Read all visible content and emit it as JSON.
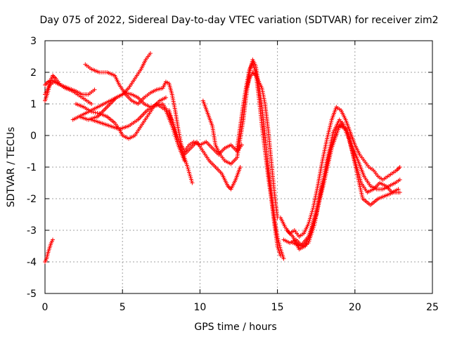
{
  "chart_data": {
    "type": "scatter",
    "title": "Day 075 of 2022, Sidereal Day-to-day VTEC variation (SDTVAR) for receiver zim2",
    "xlabel": "GPS time / hours",
    "ylabel": "SDTVAR / TECUs",
    "xlim": [
      0,
      25
    ],
    "ylim": [
      -5,
      3
    ],
    "xticks": [
      0,
      5,
      10,
      15,
      20,
      25
    ],
    "yticks": [
      -5,
      -4,
      -3,
      -2,
      -1,
      0,
      1,
      2,
      3
    ],
    "grid": true,
    "marker": "plus",
    "color": "#ff0000",
    "series": [
      {
        "x": [
          0.0,
          0.1,
          0.2,
          0.3,
          0.4,
          0.5
        ],
        "y": [
          -4.0,
          -3.9,
          -3.7,
          -3.55,
          -3.4,
          -3.3
        ]
      },
      {
        "x": [
          0.0,
          0.2,
          0.4,
          0.5,
          0.7,
          1.0,
          1.3,
          1.6,
          2.0,
          2.4,
          2.8,
          3.2
        ],
        "y": [
          1.1,
          1.4,
          1.8,
          1.9,
          1.8,
          1.6,
          1.5,
          1.45,
          1.4,
          1.3,
          1.3,
          1.45
        ]
      },
      {
        "x": [
          0.0,
          0.2,
          0.5,
          0.8,
          1.2,
          1.8,
          2.4,
          3.0
        ],
        "y": [
          1.6,
          1.7,
          1.75,
          1.65,
          1.55,
          1.4,
          1.2,
          1.0
        ]
      },
      {
        "x": [
          0.0,
          0.3,
          0.6,
          1.0,
          1.5,
          2.0
        ],
        "y": [
          1.3,
          1.6,
          1.7,
          1.6,
          1.5,
          1.4
        ]
      },
      {
        "x": [
          1.8,
          2.2,
          2.6,
          3.0,
          3.4,
          3.8,
          4.2,
          4.6,
          5.0,
          5.4,
          5.8,
          6.2,
          6.5,
          6.8
        ],
        "y": [
          0.5,
          0.6,
          0.7,
          0.8,
          0.9,
          1.0,
          1.1,
          1.2,
          1.3,
          1.5,
          1.8,
          2.1,
          2.4,
          2.6
        ]
      },
      {
        "x": [
          2.6,
          3.0,
          3.5,
          4.0,
          4.5,
          4.8,
          5.2,
          5.6,
          6.0,
          6.4,
          6.8,
          7.2,
          7.6
        ],
        "y": [
          2.25,
          2.1,
          2.0,
          2.0,
          1.9,
          1.6,
          1.3,
          1.1,
          1.0,
          1.2,
          1.35,
          1.45,
          1.5
        ]
      },
      {
        "x": [
          2.0,
          2.5,
          3.0,
          3.5,
          4.0,
          4.5,
          4.8,
          5.0,
          5.4,
          5.8,
          6.2,
          6.6,
          7.0,
          7.4,
          7.8
        ],
        "y": [
          1.0,
          0.9,
          0.75,
          0.7,
          0.6,
          0.4,
          0.2,
          0.0,
          -0.1,
          0.0,
          0.3,
          0.6,
          0.9,
          1.1,
          1.2
        ]
      },
      {
        "x": [
          2.2,
          2.8,
          3.4,
          4.0,
          4.6,
          5.2,
          5.6,
          6.0,
          6.4,
          6.8,
          7.2,
          7.6,
          8.0,
          8.4,
          8.8,
          9.2,
          9.5
        ],
        "y": [
          0.6,
          0.5,
          0.6,
          0.9,
          1.2,
          1.35,
          1.3,
          1.2,
          1.0,
          0.9,
          0.95,
          1.0,
          0.7,
          0.2,
          -0.4,
          -1.0,
          -1.5
        ]
      },
      {
        "x": [
          3.0,
          3.6,
          4.2,
          4.8,
          5.4,
          6.0,
          6.6,
          7.2,
          7.8,
          8.2,
          8.6,
          9.0
        ],
        "y": [
          0.5,
          0.4,
          0.3,
          0.2,
          0.3,
          0.5,
          0.8,
          1.0,
          0.8,
          0.3,
          -0.3,
          -0.8
        ]
      },
      {
        "x": [
          7.6,
          7.8,
          8.0,
          8.2,
          8.4,
          8.6,
          8.8,
          9.0,
          9.3,
          9.6,
          10.0,
          10.4,
          10.8,
          11.2,
          11.6,
          12.0,
          12.4,
          12.7
        ],
        "y": [
          1.5,
          1.7,
          1.65,
          1.3,
          0.8,
          0.2,
          -0.3,
          -0.5,
          -0.3,
          -0.2,
          -0.3,
          -0.2,
          -0.4,
          -0.6,
          -0.4,
          -0.3,
          -0.5,
          -0.3
        ]
      },
      {
        "x": [
          8.0,
          8.3,
          8.6,
          9.0,
          9.4,
          9.8,
          10.2,
          10.6,
          11.0,
          11.4,
          11.8,
          12.0,
          12.3,
          12.6
        ],
        "y": [
          0.8,
          0.3,
          -0.3,
          -0.6,
          -0.4,
          -0.2,
          -0.5,
          -0.8,
          -1.0,
          -1.2,
          -1.6,
          -1.7,
          -1.4,
          -1.0
        ]
      },
      {
        "x": [
          10.2,
          10.5,
          10.8,
          11.0,
          11.3,
          11.6,
          12.0,
          12.4,
          12.8,
          13.0,
          13.2,
          13.4,
          13.6,
          13.8,
          14.0,
          14.2,
          14.4,
          14.6,
          14.8,
          15.0,
          15.2,
          15.4
        ],
        "y": [
          1.1,
          0.7,
          0.3,
          -0.3,
          -0.6,
          -0.8,
          -0.9,
          -0.7,
          0.5,
          1.3,
          2.0,
          2.4,
          2.2,
          1.6,
          0.9,
          0.0,
          -1.0,
          -1.8,
          -2.6,
          -3.2,
          -3.6,
          -3.9
        ]
      },
      {
        "x": [
          12.4,
          12.6,
          12.8,
          13.0,
          13.2,
          13.4,
          13.6,
          13.8,
          14.0,
          14.2,
          14.4,
          14.6,
          14.8,
          15.0,
          15.2
        ],
        "y": [
          -0.4,
          0.3,
          1.0,
          1.6,
          2.1,
          2.3,
          2.0,
          1.2,
          0.3,
          -0.5,
          -1.3,
          -2.0,
          -2.8,
          -3.5,
          -3.8
        ]
      },
      {
        "x": [
          13.0,
          13.2,
          13.4,
          13.6,
          13.8,
          14.0,
          14.2,
          14.4,
          14.6,
          14.8,
          15.0
        ],
        "y": [
          1.5,
          1.8,
          2.0,
          1.9,
          1.7,
          1.5,
          1.0,
          0.2,
          -0.8,
          -1.8,
          -2.6
        ]
      },
      {
        "x": [
          15.2,
          15.5,
          15.8,
          16.1,
          16.4,
          16.7,
          17.0,
          17.3,
          17.6,
          17.9,
          18.2,
          18.5,
          18.8,
          19.1,
          19.4,
          19.7,
          20.0,
          20.3,
          20.6,
          20.9,
          21.2,
          21.5,
          21.8,
          22.1,
          22.4,
          22.7,
          22.9
        ],
        "y": [
          -2.6,
          -2.9,
          -3.1,
          -3.0,
          -3.2,
          -3.1,
          -2.8,
          -2.3,
          -1.6,
          -0.8,
          -0.1,
          0.5,
          0.9,
          0.8,
          0.5,
          0.1,
          -0.3,
          -0.6,
          -0.8,
          -1.0,
          -1.1,
          -1.3,
          -1.4,
          -1.3,
          -1.2,
          -1.1,
          -1.0
        ]
      },
      {
        "x": [
          15.4,
          15.8,
          16.2,
          16.6,
          17.0,
          17.4,
          17.8,
          18.2,
          18.6,
          19.0,
          19.4,
          19.8,
          20.2,
          20.6,
          21.0,
          21.4,
          21.8,
          22.2,
          22.6,
          22.9
        ],
        "y": [
          -3.3,
          -3.4,
          -3.3,
          -3.5,
          -3.4,
          -2.8,
          -1.8,
          -0.8,
          0.1,
          0.5,
          0.2,
          -0.3,
          -0.8,
          -1.3,
          -1.6,
          -1.7,
          -1.7,
          -1.6,
          -1.5,
          -1.4
        ]
      },
      {
        "x": [
          15.6,
          16.0,
          16.4,
          16.8,
          17.2,
          17.6,
          18.0,
          18.4,
          18.8,
          19.2,
          19.6,
          20.0,
          20.4,
          20.8,
          21.2,
          21.6,
          22.0,
          22.4,
          22.8
        ],
        "y": [
          -3.0,
          -3.2,
          -3.6,
          -3.5,
          -3.0,
          -2.2,
          -1.3,
          -0.5,
          0.2,
          0.4,
          -0.1,
          -0.8,
          -1.5,
          -1.8,
          -1.7,
          -1.5,
          -1.6,
          -1.8,
          -1.7
        ]
      },
      {
        "x": [
          16.0,
          16.5,
          17.0,
          17.5,
          18.0,
          18.5,
          19.0,
          19.5,
          20.0,
          20.5,
          21.0,
          21.5,
          22.0,
          22.5,
          22.9
        ],
        "y": [
          -3.4,
          -3.5,
          -3.2,
          -2.5,
          -1.5,
          -0.4,
          0.3,
          0.2,
          -0.9,
          -2.0,
          -2.2,
          -2.0,
          -1.9,
          -1.8,
          -1.8
        ]
      }
    ]
  }
}
